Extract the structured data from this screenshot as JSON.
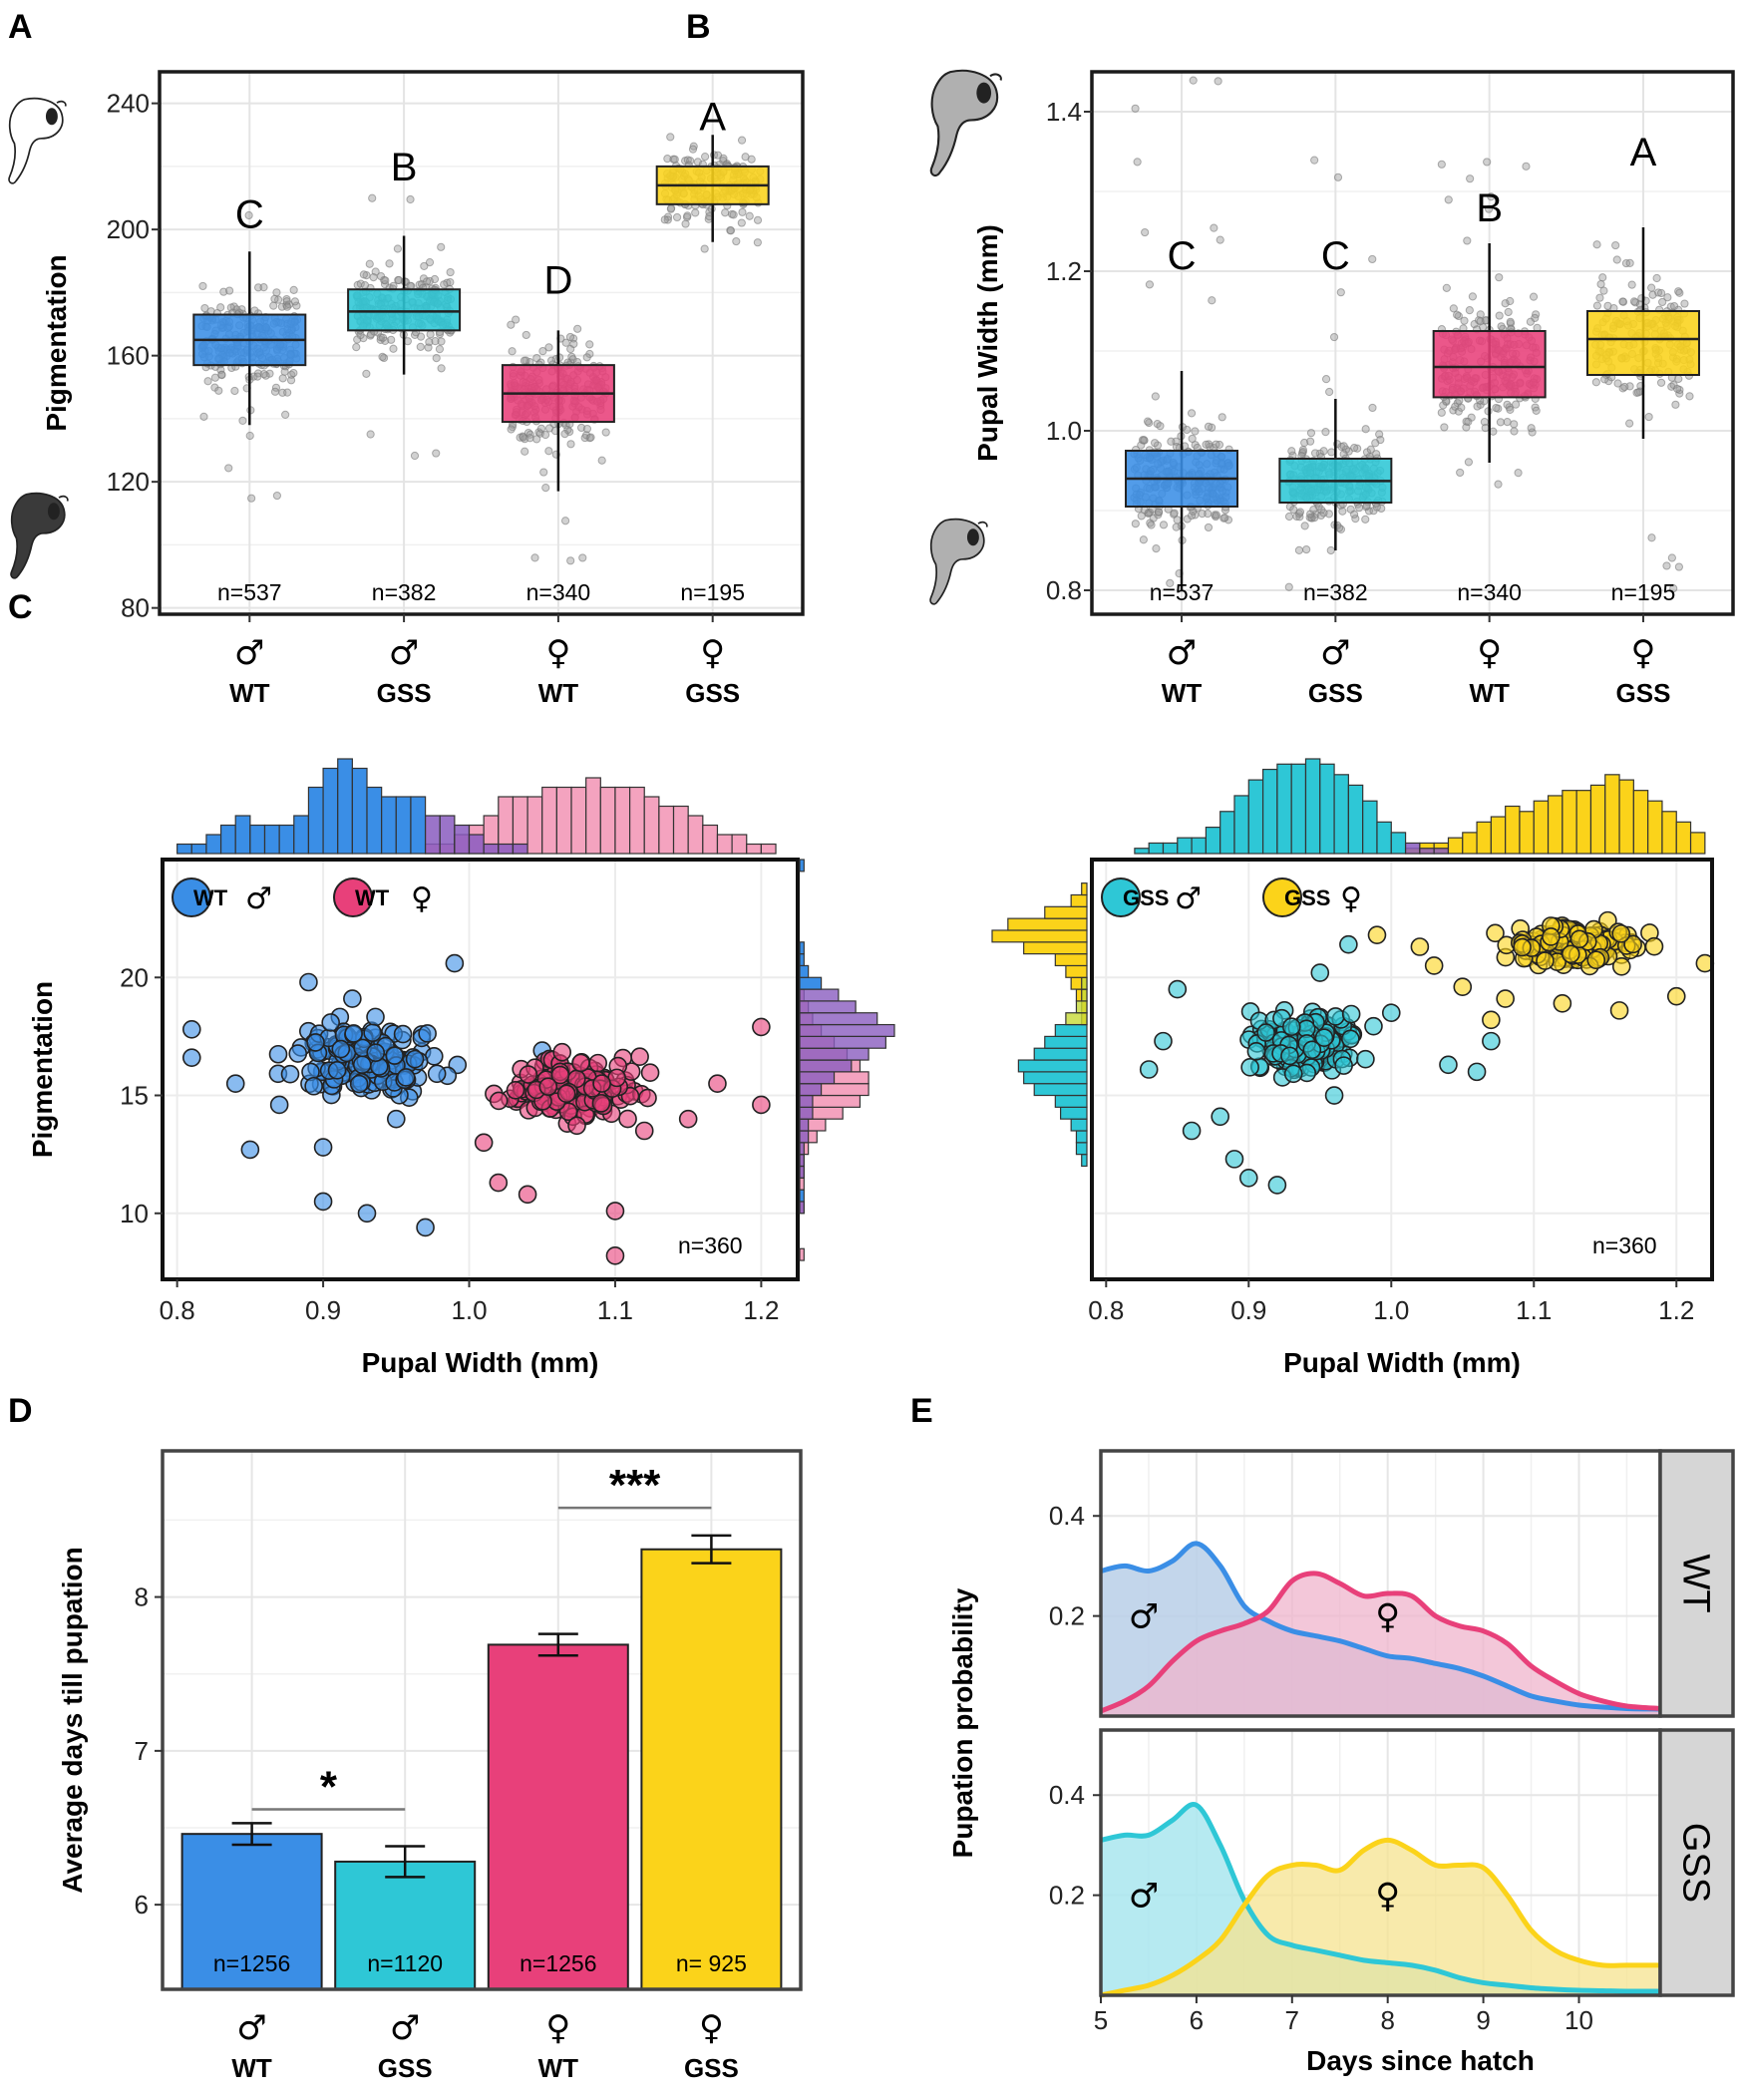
{
  "colors": {
    "wt_male": "#3a8ee6",
    "gss_male": "#2ec7d6",
    "wt_female": "#e8407a",
    "gss_female": "#fbd31a",
    "wt_female_light": "#f4a3bf",
    "male_overlap": "#8a5cbf"
  },
  "panel_letters": [
    "A",
    "B",
    "C",
    "D",
    "E"
  ],
  "groups": [
    {
      "symbol": "♂",
      "label": "WT"
    },
    {
      "symbol": "♂",
      "label": "GSS"
    },
    {
      "symbol": "♀",
      "label": "WT"
    },
    {
      "symbol": "♀",
      "label": "GSS"
    }
  ],
  "chart_data": [
    {
      "id": "A",
      "type": "box",
      "ylabel": "Pigmentation",
      "ylim": [
        78,
        250
      ],
      "yticks": [
        80,
        120,
        160,
        200,
        240
      ],
      "boxes": [
        {
          "group": "♂ WT",
          "n": "n=537",
          "q1": 157,
          "median": 165,
          "q3": 173,
          "whisker_low": 138,
          "whisker_high": 193,
          "letter": "C",
          "letter_y": 205,
          "jit_lo": 92,
          "jit_hi": 205
        },
        {
          "group": "♂ GSS",
          "n": "n=382",
          "q1": 168,
          "median": 174,
          "q3": 181,
          "whisker_low": 154,
          "whisker_high": 198,
          "letter": "B",
          "letter_y": 220,
          "jit_lo": 118,
          "jit_hi": 210
        },
        {
          "group": "♀ WT",
          "n": "n=340",
          "q1": 139,
          "median": 148,
          "q3": 157,
          "whisker_low": 117,
          "whisker_high": 168,
          "letter": "D",
          "letter_y": 184,
          "jit_lo": 93,
          "jit_hi": 172
        },
        {
          "group": "♀ GSS",
          "n": "n=195",
          "q1": 208,
          "median": 214,
          "q3": 220,
          "whisker_low": 196,
          "whisker_high": 230,
          "letter": "A",
          "letter_y": 236,
          "jit_lo": 193,
          "jit_hi": 232
        }
      ]
    },
    {
      "id": "B",
      "type": "box",
      "ylabel": "Pupal Width (mm)",
      "ylim": [
        0.77,
        1.45
      ],
      "yticks": [
        0.8,
        1.0,
        1.2,
        1.4
      ],
      "boxes": [
        {
          "group": "♂ WT",
          "n": "n=537",
          "q1": 0.905,
          "median": 0.94,
          "q3": 0.975,
          "whisker_low": 0.8,
          "whisker_high": 1.075,
          "letter": "C",
          "letter_y": 1.22,
          "jit_lo": 0.79,
          "jit_hi": 1.44
        },
        {
          "group": "♂ GSS",
          "n": "n=382",
          "q1": 0.91,
          "median": 0.937,
          "q3": 0.965,
          "whisker_low": 0.85,
          "whisker_high": 1.04,
          "letter": "C",
          "letter_y": 1.22,
          "jit_lo": 0.8,
          "jit_hi": 1.38
        },
        {
          "group": "♀ WT",
          "n": "n=340",
          "q1": 1.042,
          "median": 1.08,
          "q3": 1.125,
          "whisker_low": 0.96,
          "whisker_high": 1.235,
          "letter": "B",
          "letter_y": 1.28,
          "jit_lo": 0.9,
          "jit_hi": 1.35
        },
        {
          "group": "♀ GSS",
          "n": "n=195",
          "q1": 1.07,
          "median": 1.115,
          "q3": 1.15,
          "whisker_low": 0.99,
          "whisker_high": 1.255,
          "letter": "A",
          "letter_y": 1.35,
          "jit_lo": 0.79,
          "jit_hi": 1.26
        }
      ]
    },
    {
      "id": "C-left",
      "type": "scatter",
      "xlabel": "Pupal Width (mm)",
      "ylabel": "Pigmentation",
      "xlim": [
        0.79,
        1.225
      ],
      "ylim": [
        7.2,
        25
      ],
      "xticks": [
        0.8,
        0.9,
        1.0,
        1.1,
        1.2
      ],
      "yticks": [
        10,
        15,
        20
      ],
      "n": "n=360",
      "series": [
        {
          "name": "WT",
          "symbol": "♂",
          "x_center": 0.93,
          "x_sd": 0.045,
          "y_center": 16.6,
          "y_sd": 1.4,
          "points": [
            [
              0.81,
              16.6
            ],
            [
              0.81,
              17.8
            ],
            [
              0.84,
              15.5
            ],
            [
              0.85,
              12.7
            ],
            [
              0.87,
              14.6
            ],
            [
              0.89,
              19.8
            ],
            [
              0.9,
              10.5
            ],
            [
              0.92,
              19.1
            ],
            [
              0.93,
              10.0
            ],
            [
              0.97,
              9.4
            ],
            [
              0.99,
              20.6
            ],
            [
              0.95,
              14.0
            ],
            [
              0.9,
              12.8
            ],
            [
              1.05,
              16.9
            ]
          ]
        },
        {
          "name": "WT",
          "symbol": "♀",
          "x_center": 1.07,
          "x_sd": 0.045,
          "y_center": 15.3,
          "y_sd": 1.2,
          "points": [
            [
              1.01,
              13.0
            ],
            [
              1.02,
              11.3
            ],
            [
              1.04,
              10.8
            ],
            [
              1.1,
              10.1
            ],
            [
              1.1,
              8.2
            ],
            [
              1.12,
              13.5
            ],
            [
              1.17,
              15.5
            ],
            [
              1.2,
              14.6
            ],
            [
              1.2,
              17.9
            ],
            [
              1.15,
              14.0
            ]
          ]
        }
      ],
      "top_hist": {
        "bins": [
          0.8,
          0.81,
          0.82,
          0.83,
          0.84,
          0.85,
          0.86,
          0.87,
          0.88,
          0.89,
          0.9,
          0.91,
          0.92,
          0.93,
          0.94,
          0.95,
          0.96,
          0.97,
          0.98,
          0.99,
          1.0,
          1.01,
          1.02,
          1.03,
          1.04,
          1.05,
          1.06,
          1.07,
          1.08,
          1.09,
          1.1,
          1.11,
          1.12,
          1.13,
          1.14,
          1.15,
          1.16,
          1.17,
          1.18,
          1.19,
          1.2,
          1.21
        ],
        "male": [
          1,
          1,
          2,
          3,
          4,
          3,
          3,
          3,
          4,
          7,
          9,
          10,
          9,
          7,
          6,
          6,
          6,
          4,
          4,
          3,
          2,
          1,
          1,
          1,
          0,
          0,
          0,
          0,
          0,
          0,
          0,
          0,
          0,
          0,
          0,
          0,
          0,
          0,
          0,
          0,
          0,
          0
        ],
        "female": [
          0,
          0,
          0,
          0,
          0,
          0,
          0,
          0,
          0,
          0,
          0,
          0,
          0,
          0,
          0,
          0,
          0,
          1,
          1,
          2,
          3,
          4,
          6,
          6,
          6,
          7,
          7,
          7,
          8,
          7,
          7,
          7,
          6,
          5,
          5,
          4,
          3,
          2,
          2,
          1,
          1,
          0
        ]
      },
      "side_hist": {
        "bins": [
          8,
          8.5,
          9,
          9.5,
          10,
          10.5,
          11,
          11.5,
          12,
          12.5,
          13,
          13.5,
          14,
          14.5,
          15,
          15.5,
          16,
          16.5,
          17,
          17.5,
          18,
          18.5,
          19,
          19.5,
          20,
          20.5,
          21,
          21.5,
          22,
          22.5,
          23,
          23.5,
          24,
          24.5
        ],
        "male": [
          0,
          0,
          0,
          0,
          1,
          1,
          0,
          1,
          1,
          1,
          2,
          2,
          3,
          3,
          5,
          8,
          12,
          16,
          20,
          22,
          18,
          13,
          9,
          5,
          2,
          1,
          1,
          0,
          0,
          0,
          0,
          0,
          0,
          1
        ],
        "female": [
          1,
          0,
          0,
          0,
          1,
          0,
          1,
          1,
          1,
          2,
          4,
          6,
          10,
          14,
          16,
          16,
          14,
          11,
          8,
          5,
          3,
          2,
          1,
          0,
          0,
          0,
          0,
          0,
          0,
          0,
          0,
          0,
          0,
          0
        ]
      }
    },
    {
      "id": "C-right",
      "type": "scatter",
      "xlabel": "Pupal Width (mm)",
      "xlim": [
        0.79,
        1.225
      ],
      "ylim": [
        7.2,
        25
      ],
      "xticks": [
        0.8,
        0.9,
        1.0,
        1.1,
        1.2
      ],
      "yticks": [
        10,
        15,
        20
      ],
      "n": "n=360",
      "series": [
        {
          "name": "GSS",
          "symbol": "♂",
          "x_center": 0.94,
          "x_sd": 0.035,
          "y_center": 17.2,
          "y_sd": 1.2,
          "points": [
            [
              0.83,
              16.1
            ],
            [
              0.84,
              17.3
            ],
            [
              0.85,
              19.5
            ],
            [
              0.86,
              13.5
            ],
            [
              0.88,
              14.1
            ],
            [
              0.89,
              12.3
            ],
            [
              0.9,
              11.5
            ],
            [
              0.92,
              11.2
            ],
            [
              0.95,
              20.2
            ],
            [
              0.97,
              21.4
            ],
            [
              1.04,
              16.3
            ],
            [
              1.06,
              16.0
            ],
            [
              1.07,
              17.3
            ],
            [
              0.96,
              15.0
            ],
            [
              1.0,
              18.5
            ]
          ]
        },
        {
          "name": "GSS",
          "symbol": "♀",
          "x_center": 1.13,
          "x_sd": 0.045,
          "y_center": 21.4,
          "y_sd": 0.8,
          "points": [
            [
              0.99,
              21.8
            ],
            [
              1.02,
              21.3
            ],
            [
              1.03,
              20.5
            ],
            [
              1.05,
              19.6
            ],
            [
              1.07,
              18.2
            ],
            [
              1.08,
              19.1
            ],
            [
              1.12,
              18.9
            ],
            [
              1.16,
              18.6
            ],
            [
              1.2,
              19.2
            ],
            [
              1.22,
              20.6
            ]
          ]
        }
      ],
      "top_hist": {
        "bins": [
          0.82,
          0.83,
          0.84,
          0.85,
          0.86,
          0.87,
          0.88,
          0.89,
          0.9,
          0.91,
          0.92,
          0.93,
          0.94,
          0.95,
          0.96,
          0.97,
          0.98,
          0.99,
          1.0,
          1.01,
          1.02,
          1.03,
          1.04,
          1.05,
          1.06,
          1.07,
          1.08,
          1.09,
          1.1,
          1.11,
          1.12,
          1.13,
          1.14,
          1.15,
          1.16,
          1.17,
          1.18,
          1.19,
          1.2,
          1.21
        ],
        "male": [
          1,
          2,
          2,
          3,
          3,
          5,
          8,
          11,
          14,
          16,
          17,
          17,
          18,
          17,
          15,
          13,
          10,
          6,
          4,
          2,
          1,
          1,
          0,
          0,
          0,
          0,
          0,
          0,
          0,
          0,
          0,
          0,
          0,
          0,
          0,
          0,
          0,
          0,
          0,
          0
        ],
        "female": [
          0,
          0,
          0,
          0,
          0,
          0,
          0,
          0,
          0,
          0,
          0,
          0,
          0,
          0,
          0,
          0,
          0,
          0,
          0,
          1,
          2,
          2,
          3,
          4,
          6,
          7,
          9,
          8,
          10,
          11,
          12,
          12,
          13,
          15,
          14,
          12,
          10,
          8,
          6,
          4
        ]
      },
      "side_hist": {
        "bins": [
          10,
          10.5,
          11,
          11.5,
          12,
          12.5,
          13,
          13.5,
          14,
          14.5,
          15,
          15.5,
          16,
          16.5,
          17,
          17.5,
          18,
          18.5,
          19,
          19.5,
          20,
          20.5,
          21,
          21.5,
          22,
          22.5,
          23,
          23.5
        ],
        "male": [
          0,
          0,
          0,
          0,
          1,
          2,
          2,
          3,
          5,
          6,
          10,
          12,
          13,
          10,
          8,
          6,
          4,
          2,
          1,
          1,
          0,
          0,
          0,
          0,
          0,
          0,
          0,
          0
        ],
        "female": [
          0,
          0,
          0,
          0,
          0,
          0,
          0,
          0,
          0,
          0,
          0,
          0,
          0,
          0,
          0,
          0,
          1,
          1,
          2,
          3,
          4,
          6,
          12,
          18,
          15,
          8,
          3,
          1
        ]
      }
    },
    {
      "id": "D",
      "type": "bar",
      "ylabel": "Average days till pupation",
      "ylim": [
        5.45,
        8.95
      ],
      "yticks": [
        6,
        7,
        8
      ],
      "categories": [
        "♂ WT",
        "♂ GSS",
        "♀ WT",
        "♀ GSS"
      ],
      "values": [
        6.46,
        6.28,
        7.69,
        8.31
      ],
      "errors": [
        0.07,
        0.1,
        0.07,
        0.09
      ],
      "n_labels": [
        "n=1256",
        "n=1120",
        "n=1256",
        "n= 925"
      ],
      "significance": [
        {
          "between": [
            0,
            1
          ],
          "label": "*",
          "y": 6.62
        },
        {
          "between": [
            2,
            3
          ],
          "label": "***",
          "y": 8.58
        }
      ]
    },
    {
      "id": "E",
      "type": "area",
      "xlabel": "Days since hatch",
      "ylabel": "Pupation probability",
      "xlim": [
        5,
        10.85
      ],
      "ylim": [
        0,
        0.53
      ],
      "xticks": [
        5,
        6,
        7,
        8,
        9,
        10
      ],
      "yticks": [
        0.2,
        0.4
      ],
      "x": [
        5.0,
        5.25,
        5.5,
        5.75,
        6.0,
        6.25,
        6.5,
        6.75,
        7.0,
        7.25,
        7.5,
        7.75,
        8.0,
        8.25,
        8.5,
        8.75,
        9.0,
        9.25,
        9.5,
        9.75,
        10.0,
        10.25,
        10.5,
        10.85
      ],
      "facets": [
        {
          "strip": "WT",
          "male": [
            0.29,
            0.3,
            0.29,
            0.31,
            0.345,
            0.3,
            0.22,
            0.19,
            0.17,
            0.16,
            0.15,
            0.135,
            0.12,
            0.115,
            0.105,
            0.095,
            0.08,
            0.06,
            0.04,
            0.03,
            0.022,
            0.018,
            0.015,
            0.014
          ],
          "female": [
            0.01,
            0.03,
            0.06,
            0.11,
            0.15,
            0.17,
            0.185,
            0.21,
            0.27,
            0.285,
            0.265,
            0.24,
            0.245,
            0.24,
            0.2,
            0.18,
            0.17,
            0.145,
            0.1,
            0.07,
            0.045,
            0.03,
            0.02,
            0.015
          ]
        },
        {
          "strip": "GSS",
          "male": [
            0.31,
            0.32,
            0.32,
            0.35,
            0.38,
            0.3,
            0.19,
            0.12,
            0.1,
            0.09,
            0.08,
            0.07,
            0.065,
            0.06,
            0.05,
            0.035,
            0.025,
            0.02,
            0.015,
            0.012,
            0.01,
            0.009,
            0.008,
            0.008
          ],
          "female": [
            0.0,
            0.01,
            0.02,
            0.04,
            0.07,
            0.11,
            0.18,
            0.24,
            0.26,
            0.26,
            0.25,
            0.29,
            0.31,
            0.29,
            0.26,
            0.26,
            0.255,
            0.2,
            0.13,
            0.09,
            0.07,
            0.06,
            0.06,
            0.06
          ]
        }
      ],
      "legend": {
        "male_symbol": "♂",
        "female_symbol": "♀"
      }
    }
  ]
}
